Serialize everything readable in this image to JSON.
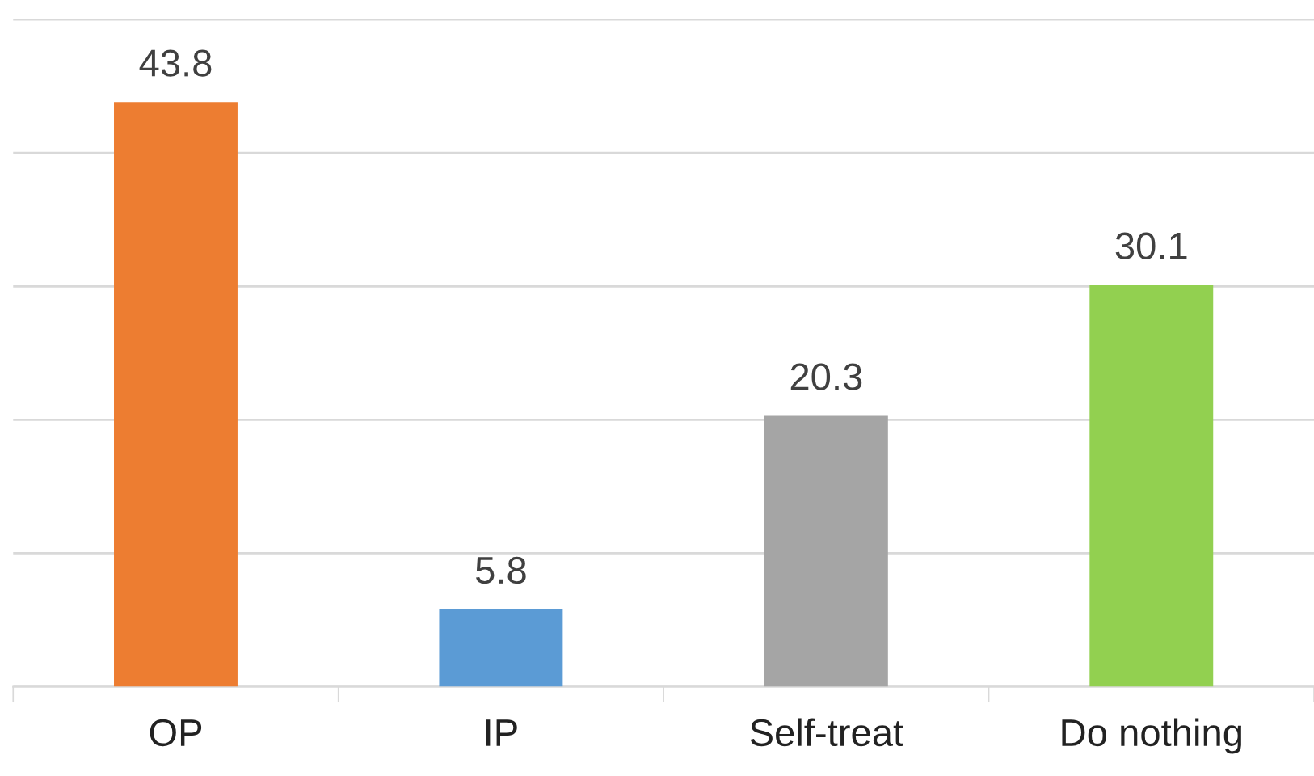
{
  "chart_data": {
    "type": "bar",
    "categories": [
      "OP",
      "IP",
      "Self-treat",
      "Do nothing"
    ],
    "values": [
      43.8,
      5.8,
      20.3,
      30.1
    ],
    "colors": [
      "#ed7d31",
      "#5b9bd5",
      "#a5a5a5",
      "#92d050"
    ],
    "ylim": [
      0,
      50
    ],
    "yticks": [
      {
        "value": 0,
        "label": null
      },
      {
        "value": 10,
        "label": null
      },
      {
        "value": 20,
        "label": null
      },
      {
        "value": 30,
        "label": null
      },
      {
        "value": 40,
        "label": null
      },
      {
        "value": 50,
        "label": null
      }
    ],
    "grid": "y",
    "tick_labels": "x",
    "data_labels": true
  }
}
